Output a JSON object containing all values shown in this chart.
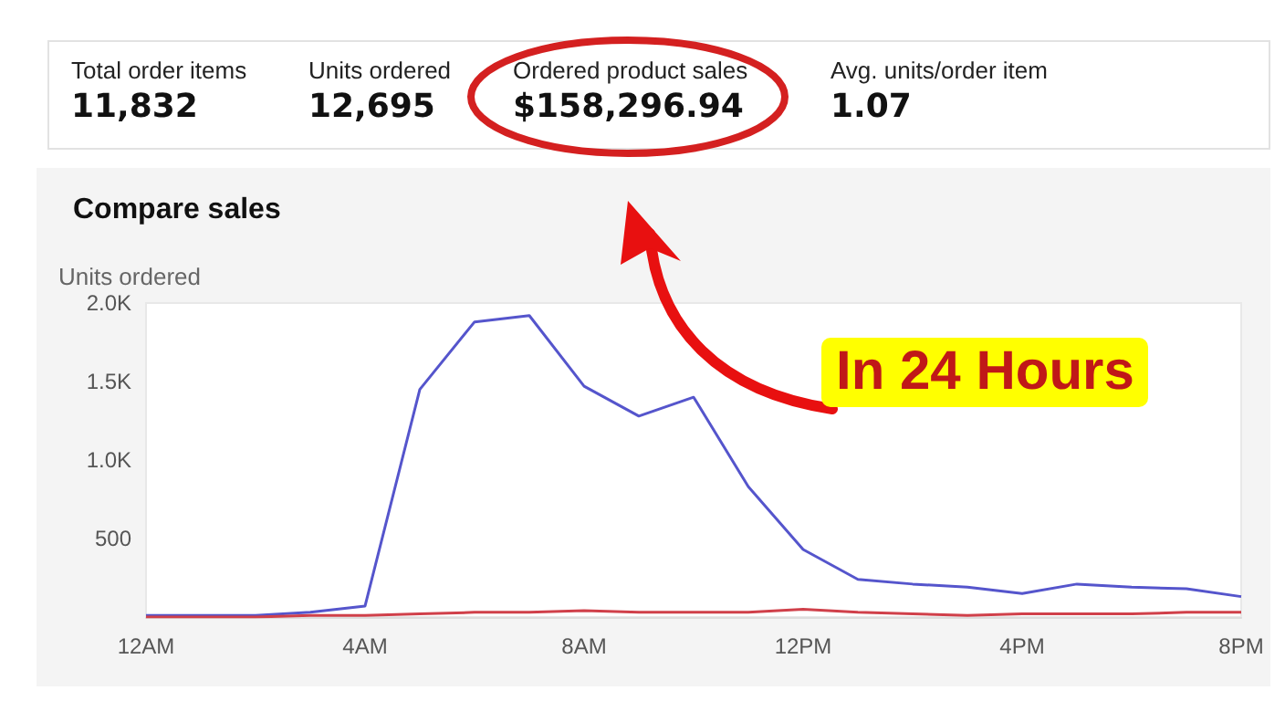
{
  "chart_data": {
    "type": "line",
    "title": "Compare sales",
    "ylabel": "Units ordered",
    "categories": [
      "12AM",
      null,
      null,
      null,
      "4AM",
      null,
      null,
      null,
      "8AM",
      null,
      null,
      null,
      "12PM",
      null,
      null,
      null,
      "4PM",
      null,
      null,
      null,
      "8PM"
    ],
    "series": [
      {
        "color": "#5555cc",
        "values": [
          10,
          10,
          10,
          30,
          70,
          1450,
          1880,
          1920,
          1470,
          1280,
          1400,
          830,
          430,
          240,
          210,
          190,
          150,
          210,
          190,
          180,
          130
        ]
      },
      {
        "color": "#d0404a",
        "values": [
          0,
          0,
          0,
          10,
          10,
          20,
          30,
          30,
          40,
          30,
          30,
          30,
          50,
          30,
          20,
          10,
          20,
          20,
          20,
          30,
          30
        ]
      }
    ],
    "ylim": [
      0,
      2000
    ],
    "yticks": [
      {
        "value": 0,
        "label": null
      },
      {
        "value": 500,
        "label": "500"
      },
      {
        "value": 1000,
        "label": "1.0K"
      },
      {
        "value": 1500,
        "label": "1.5K"
      },
      {
        "value": 2000,
        "label": "2.0K"
      }
    ],
    "grid": false,
    "marker": "none",
    "line_style": "solid",
    "annotations": [
      "Total order items",
      "11,832",
      "Units ordered",
      "12,695",
      "Ordered product sales",
      "$158,296.94",
      "Avg. units/order item",
      "1.07",
      "In 24 Hours"
    ]
  }
}
